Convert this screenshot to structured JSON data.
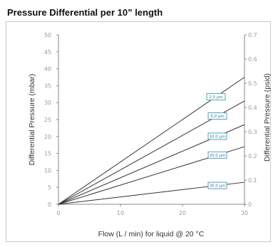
{
  "chart_data": {
    "type": "line",
    "title": "Pressure Differential per 10” length",
    "xlabel": "Flow (L / min) for liquid @ 20 °C",
    "ylabel": "Differential Pressure (mbar)",
    "y2label": "Differential Pressure (psid)",
    "xlim": [
      0,
      30
    ],
    "ylim": [
      0,
      50
    ],
    "y2lim": [
      0,
      0.7
    ],
    "xticks": [
      "0",
      "10",
      "20",
      "30"
    ],
    "yticks": [
      "0",
      "5",
      "10",
      "15",
      "20",
      "25",
      "30",
      "35",
      "40",
      "45",
      "50"
    ],
    "y2ticks": [
      "0",
      "0.1",
      "0.2",
      "0.3",
      "0.4",
      "0.5",
      "0.6",
      "0.7"
    ],
    "grid": false,
    "line_color": "#333333",
    "label_box_color": "#4aa3c8",
    "series": [
      {
        "name": "2.0 µm",
        "x": [
          0,
          30
        ],
        "y": [
          0,
          37.5
        ]
      },
      {
        "name": "5.0 µm",
        "x": [
          0,
          30
        ],
        "y": [
          0,
          30.5
        ]
      },
      {
        "name": "10.0 µm",
        "x": [
          0,
          30
        ],
        "y": [
          0,
          23.5
        ]
      },
      {
        "name": "20.0 µm",
        "x": [
          0,
          30
        ],
        "y": [
          0,
          17
        ]
      },
      {
        "name": "30.0 µm",
        "x": [
          0,
          30
        ],
        "y": [
          0,
          6.5
        ]
      }
    ]
  }
}
